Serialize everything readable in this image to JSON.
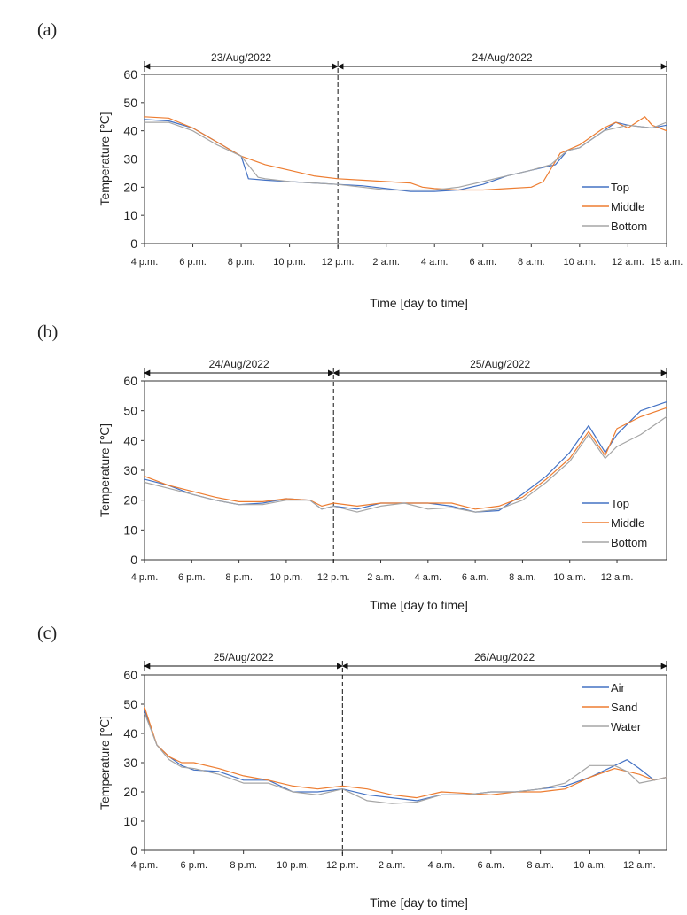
{
  "chart_data": [
    {
      "type": "line",
      "panel_label": "(a)",
      "xlabel": "Time [day to time]",
      "ylabel": "Temperature [℃]",
      "ylim": [
        0,
        60
      ],
      "yticks": [
        0,
        10,
        20,
        30,
        40,
        50,
        60
      ],
      "x_unit": "hours since 4 p.m.",
      "xlim": [
        0,
        21.6
      ],
      "xticks": [
        {
          "x": 0,
          "label": "4 p.m."
        },
        {
          "x": 2,
          "label": "6 p.m."
        },
        {
          "x": 4,
          "label": "8 p.m."
        },
        {
          "x": 6,
          "label": "10 p.m."
        },
        {
          "x": 8,
          "label": "12 p.m."
        },
        {
          "x": 10,
          "label": "2 a.m."
        },
        {
          "x": 12,
          "label": "4 a.m."
        },
        {
          "x": 14,
          "label": "6 a.m."
        },
        {
          "x": 16,
          "label": "8 a.m."
        },
        {
          "x": 18,
          "label": "10 a.m."
        },
        {
          "x": 20,
          "label": "12 a.m."
        },
        {
          "x": 21.6,
          "label": "15 a.m."
        }
      ],
      "day_divider_x": 8,
      "days": [
        "23/Aug/2022",
        "24/Aug/2022"
      ],
      "legend_position": "bottom-right",
      "grid": false,
      "series": [
        {
          "name": "Top",
          "color": "#4472C4",
          "points": [
            [
              0,
              44
            ],
            [
              1,
              43.5
            ],
            [
              2,
              41
            ],
            [
              3,
              36
            ],
            [
              4,
              31
            ],
            [
              4.3,
              23
            ],
            [
              5,
              22.5
            ],
            [
              6,
              22
            ],
            [
              7,
              21.5
            ],
            [
              8,
              21
            ],
            [
              9,
              20.5
            ],
            [
              10,
              19.5
            ],
            [
              11,
              18.5
            ],
            [
              12,
              18.5
            ],
            [
              13,
              19
            ],
            [
              14,
              21
            ],
            [
              15,
              24
            ],
            [
              16,
              26
            ],
            [
              17,
              28
            ],
            [
              17.5,
              33
            ],
            [
              18,
              34
            ],
            [
              19,
              40
            ],
            [
              19.5,
              43
            ],
            [
              20,
              42
            ],
            [
              21,
              41
            ],
            [
              21.6,
              42
            ]
          ]
        },
        {
          "name": "Middle",
          "color": "#ED7D31",
          "points": [
            [
              0,
              45
            ],
            [
              1,
              44.5
            ],
            [
              2,
              41
            ],
            [
              3,
              36
            ],
            [
              4,
              31
            ],
            [
              5,
              28
            ],
            [
              6,
              26
            ],
            [
              7,
              24
            ],
            [
              8,
              23
            ],
            [
              9,
              22.5
            ],
            [
              10,
              22
            ],
            [
              11,
              21.5
            ],
            [
              11.5,
              20
            ],
            [
              12,
              19.5
            ],
            [
              13,
              19
            ],
            [
              14,
              19
            ],
            [
              15,
              19.5
            ],
            [
              16,
              20
            ],
            [
              16.5,
              22
            ],
            [
              17.2,
              32
            ],
            [
              18,
              35
            ],
            [
              19,
              41
            ],
            [
              19.5,
              43
            ],
            [
              20,
              41
            ],
            [
              20.7,
              45
            ],
            [
              21,
              42
            ],
            [
              21.6,
              40
            ]
          ]
        },
        {
          "name": "Bottom",
          "color": "#A5A5A5",
          "points": [
            [
              0,
              43
            ],
            [
              1,
              43
            ],
            [
              2,
              40
            ],
            [
              3,
              35
            ],
            [
              4,
              31
            ],
            [
              4.7,
              23.5
            ],
            [
              5,
              23
            ],
            [
              6,
              22
            ],
            [
              7,
              21.5
            ],
            [
              8,
              21
            ],
            [
              9,
              20
            ],
            [
              10,
              19
            ],
            [
              11,
              19
            ],
            [
              12,
              19
            ],
            [
              13,
              20
            ],
            [
              14,
              22
            ],
            [
              15,
              24
            ],
            [
              16,
              26
            ],
            [
              16.8,
              28
            ],
            [
              17.5,
              33
            ],
            [
              18,
              34
            ],
            [
              19,
              40
            ],
            [
              20,
              42
            ],
            [
              21,
              41
            ],
            [
              21.6,
              43
            ]
          ]
        }
      ]
    },
    {
      "type": "line",
      "panel_label": "(b)",
      "xlabel": "Time [day to time]",
      "ylabel": "Temperature [℃]",
      "ylim": [
        0,
        60
      ],
      "yticks": [
        0,
        10,
        20,
        30,
        40,
        50,
        60
      ],
      "x_unit": "hours since 4 p.m.",
      "xlim": [
        0,
        22.1
      ],
      "xticks": [
        {
          "x": 0,
          "label": "4 p.m."
        },
        {
          "x": 2,
          "label": "6 p.m."
        },
        {
          "x": 4,
          "label": "8 p.m."
        },
        {
          "x": 6,
          "label": "10 p.m."
        },
        {
          "x": 8,
          "label": "12 p.m."
        },
        {
          "x": 10,
          "label": "2 a.m."
        },
        {
          "x": 12,
          "label": "4 a.m."
        },
        {
          "x": 14,
          "label": "6 a.m."
        },
        {
          "x": 16,
          "label": "8 a.m."
        },
        {
          "x": 18,
          "label": "10 a.m."
        },
        {
          "x": 20,
          "label": "12 a.m."
        }
      ],
      "day_divider_x": 8,
      "days": [
        "24/Aug/2022",
        "25/Aug/2022"
      ],
      "legend_position": "bottom-right",
      "grid": false,
      "series": [
        {
          "name": "Top",
          "color": "#4472C4",
          "points": [
            [
              0,
              27
            ],
            [
              1,
              25
            ],
            [
              2,
              22
            ],
            [
              3,
              20
            ],
            [
              4,
              18.5
            ],
            [
              5,
              19
            ],
            [
              6,
              20.5
            ],
            [
              7,
              20
            ],
            [
              7.5,
              17
            ],
            [
              8,
              18
            ],
            [
              9,
              17
            ],
            [
              10,
              19
            ],
            [
              11,
              19
            ],
            [
              12,
              19
            ],
            [
              13,
              18
            ],
            [
              14,
              16
            ],
            [
              15,
              16.5
            ],
            [
              16,
              22
            ],
            [
              17,
              28
            ],
            [
              18,
              36
            ],
            [
              18.8,
              45
            ],
            [
              19.5,
              36
            ],
            [
              20,
              42
            ],
            [
              21,
              50
            ],
            [
              22.1,
              53
            ]
          ]
        },
        {
          "name": "Middle",
          "color": "#ED7D31",
          "points": [
            [
              0,
              28
            ],
            [
              1,
              25
            ],
            [
              2,
              23
            ],
            [
              3,
              21
            ],
            [
              4,
              19.5
            ],
            [
              5,
              19.5
            ],
            [
              6,
              20.5
            ],
            [
              7,
              20
            ],
            [
              7.5,
              18
            ],
            [
              8,
              19
            ],
            [
              9,
              18
            ],
            [
              10,
              19
            ],
            [
              11,
              19
            ],
            [
              12,
              19
            ],
            [
              13,
              19
            ],
            [
              14,
              17
            ],
            [
              15,
              18
            ],
            [
              16,
              21
            ],
            [
              17,
              27
            ],
            [
              18,
              34
            ],
            [
              18.8,
              43
            ],
            [
              19.5,
              35
            ],
            [
              20,
              44
            ],
            [
              21,
              48
            ],
            [
              22.1,
              51
            ]
          ]
        },
        {
          "name": "Bottom",
          "color": "#A5A5A5",
          "points": [
            [
              0,
              26
            ],
            [
              1,
              24
            ],
            [
              2,
              22
            ],
            [
              3,
              20
            ],
            [
              4,
              18.5
            ],
            [
              5,
              18.5
            ],
            [
              6,
              20
            ],
            [
              7,
              20
            ],
            [
              7.5,
              17
            ],
            [
              8,
              18
            ],
            [
              9,
              16
            ],
            [
              10,
              18
            ],
            [
              11,
              19
            ],
            [
              12,
              17
            ],
            [
              13,
              17.5
            ],
            [
              14,
              16
            ],
            [
              15,
              17
            ],
            [
              16,
              20
            ],
            [
              17,
              26
            ],
            [
              18,
              33
            ],
            [
              18.8,
              42
            ],
            [
              19.5,
              34
            ],
            [
              20,
              38
            ],
            [
              21,
              42
            ],
            [
              22.1,
              48
            ]
          ]
        }
      ]
    },
    {
      "type": "line",
      "panel_label": "(c)",
      "xlabel": "Time [day to time]",
      "ylabel": "Temperature [℃]",
      "ylim": [
        0,
        60
      ],
      "yticks": [
        0,
        10,
        20,
        30,
        40,
        50,
        60
      ],
      "x_unit": "hours since 4 p.m.",
      "xlim": [
        0,
        21.1
      ],
      "xticks": [
        {
          "x": 0,
          "label": "4 p.m."
        },
        {
          "x": 2,
          "label": "6 p.m."
        },
        {
          "x": 4,
          "label": "8 p.m."
        },
        {
          "x": 6,
          "label": "10 p.m."
        },
        {
          "x": 8,
          "label": "12 p.m."
        },
        {
          "x": 10,
          "label": "2 a.m."
        },
        {
          "x": 12,
          "label": "4 a.m."
        },
        {
          "x": 14,
          "label": "6 a.m."
        },
        {
          "x": 16,
          "label": "8 a.m."
        },
        {
          "x": 18,
          "label": "10 a.m."
        },
        {
          "x": 20,
          "label": "12 a.m."
        }
      ],
      "day_divider_x": 8,
      "days": [
        "25/Aug/2022",
        "26/Aug/2022"
      ],
      "legend_position": "top-right",
      "grid": false,
      "series": [
        {
          "name": "Air",
          "color": "#4472C4",
          "points": [
            [
              0,
              48
            ],
            [
              0.5,
              36
            ],
            [
              1,
              32
            ],
            [
              1.5,
              29
            ],
            [
              2,
              27.5
            ],
            [
              3,
              27
            ],
            [
              4,
              24
            ],
            [
              5,
              24
            ],
            [
              6,
              20
            ],
            [
              7,
              20
            ],
            [
              8,
              21
            ],
            [
              9,
              19
            ],
            [
              10,
              18
            ],
            [
              11,
              17
            ],
            [
              12,
              19
            ],
            [
              13,
              19
            ],
            [
              14,
              20
            ],
            [
              15,
              20
            ],
            [
              16,
              21
            ],
            [
              17,
              22
            ],
            [
              18,
              25
            ],
            [
              19,
              29
            ],
            [
              19.5,
              31
            ],
            [
              20,
              28
            ],
            [
              20.6,
              24
            ],
            [
              21.1,
              25
            ]
          ]
        },
        {
          "name": "Sand",
          "color": "#ED7D31",
          "points": [
            [
              0,
              49
            ],
            [
              0.5,
              36
            ],
            [
              1,
              32
            ],
            [
              1.5,
              30
            ],
            [
              2,
              30
            ],
            [
              3,
              28
            ],
            [
              4,
              25.5
            ],
            [
              5,
              24
            ],
            [
              6,
              22
            ],
            [
              7,
              21
            ],
            [
              8,
              22
            ],
            [
              9,
              21
            ],
            [
              10,
              19
            ],
            [
              11,
              18
            ],
            [
              12,
              20
            ],
            [
              13,
              19.5
            ],
            [
              14,
              19
            ],
            [
              15,
              20
            ],
            [
              16,
              20
            ],
            [
              17,
              21
            ],
            [
              18,
              25
            ],
            [
              19,
              28
            ],
            [
              20,
              26
            ],
            [
              20.6,
              24
            ],
            [
              21.1,
              25
            ]
          ]
        },
        {
          "name": "Water",
          "color": "#A5A5A5",
          "points": [
            [
              0,
              47
            ],
            [
              0.5,
              36
            ],
            [
              1,
              31
            ],
            [
              1.5,
              28.5
            ],
            [
              2,
              28
            ],
            [
              3,
              26
            ],
            [
              4,
              23
            ],
            [
              5,
              23
            ],
            [
              6,
              20
            ],
            [
              7,
              19
            ],
            [
              8,
              21
            ],
            [
              9,
              17
            ],
            [
              10,
              16
            ],
            [
              11,
              16.5
            ],
            [
              12,
              19
            ],
            [
              13,
              19
            ],
            [
              14,
              20
            ],
            [
              15,
              20
            ],
            [
              16,
              21
            ],
            [
              17,
              23
            ],
            [
              18,
              29
            ],
            [
              19,
              29
            ],
            [
              19.5,
              27
            ],
            [
              20,
              23
            ],
            [
              20.6,
              24
            ],
            [
              21.1,
              25
            ]
          ]
        }
      ]
    }
  ]
}
